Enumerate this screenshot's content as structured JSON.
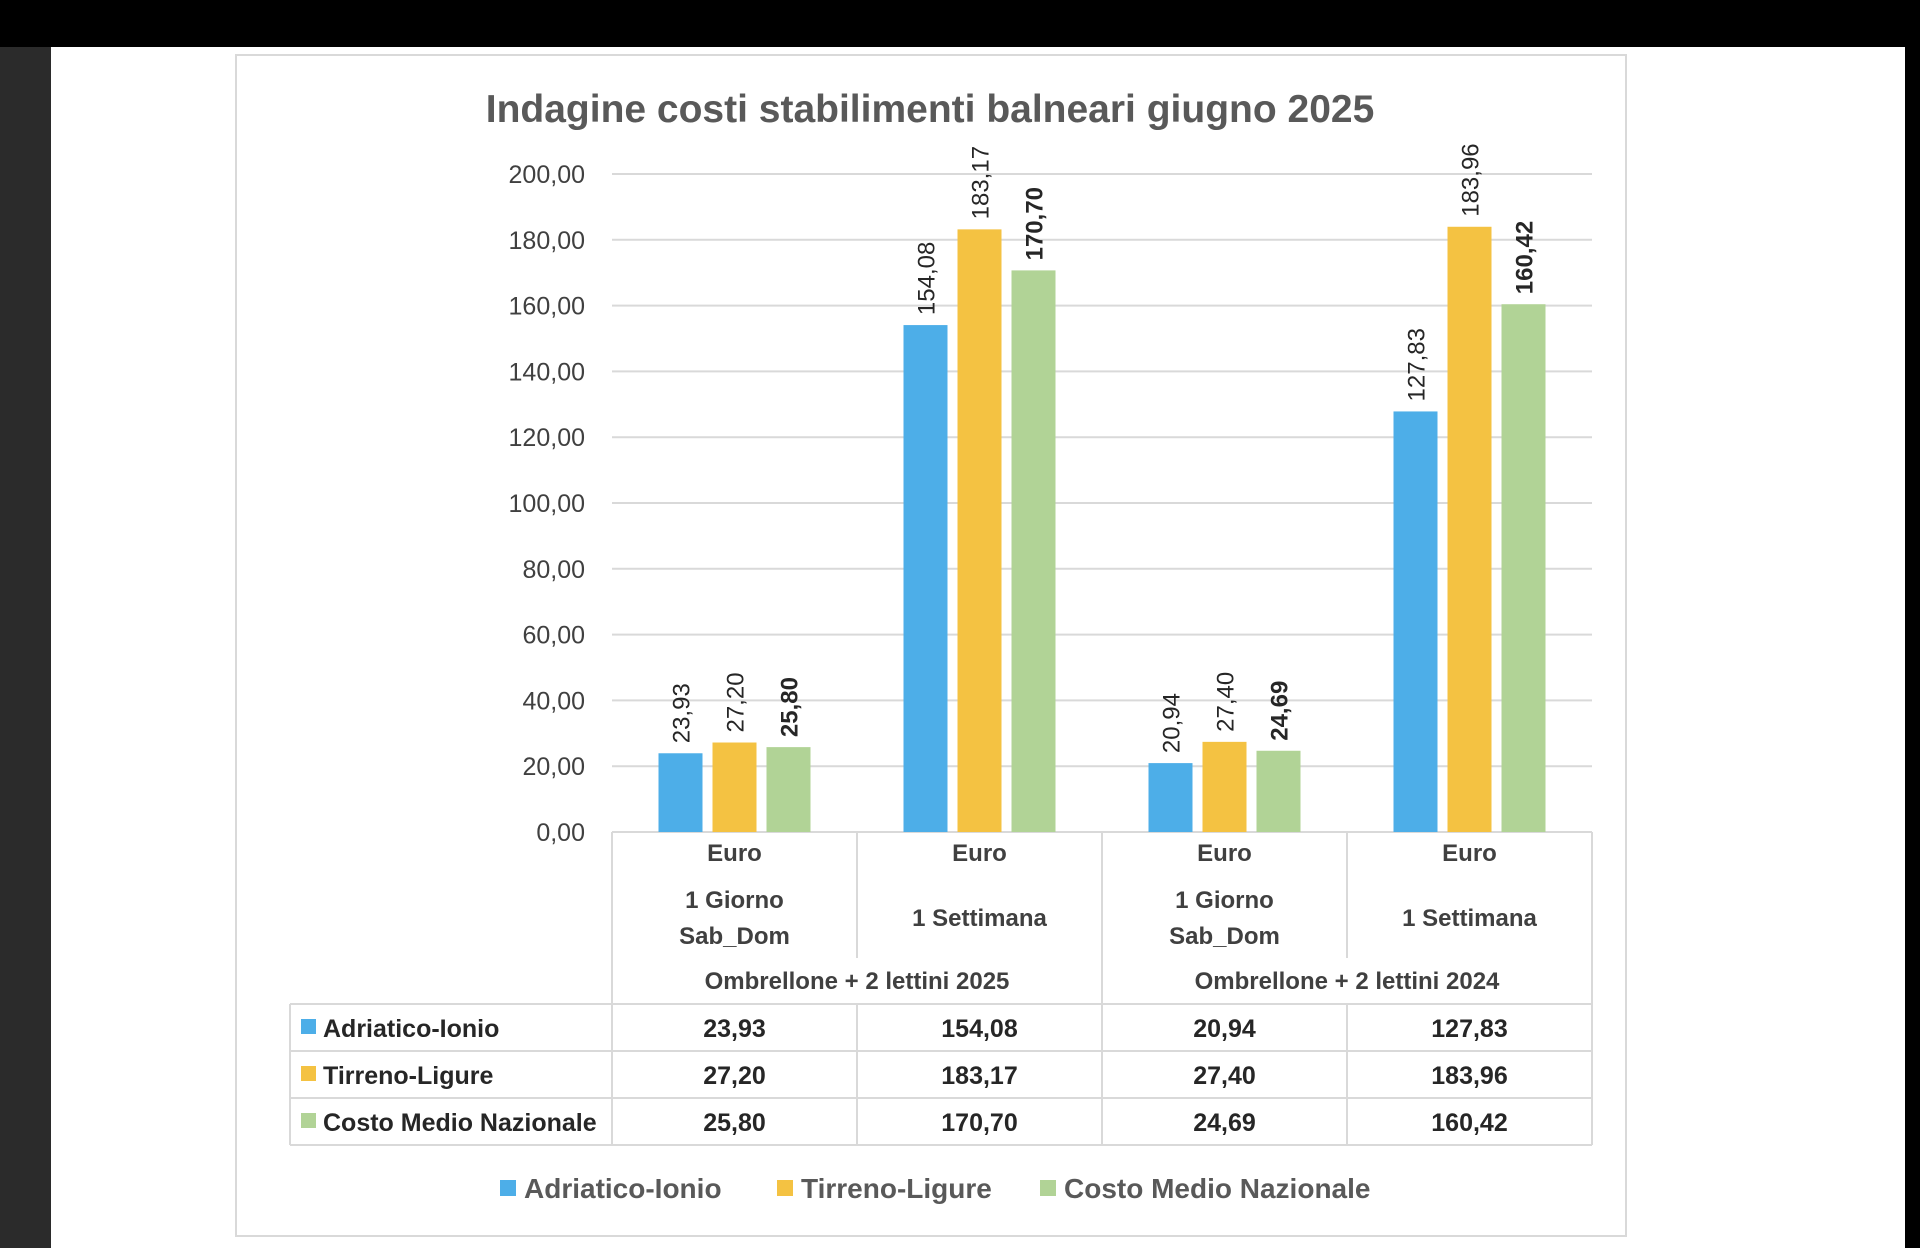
{
  "chart_data": {
    "type": "bar",
    "title": "Indagine costi stabilimenti balneari giugno 2025",
    "ylim": [
      0,
      200
    ],
    "yticks": [
      "0,00",
      "20,00",
      "40,00",
      "60,00",
      "80,00",
      "100,00",
      "120,00",
      "140,00",
      "160,00",
      "180,00",
      "200,00"
    ],
    "grid": true,
    "legend_position": "bottom",
    "categories": [
      {
        "unit": "Euro",
        "lines": [
          "1 Giorno",
          "Sab_Dom"
        ]
      },
      {
        "unit": "Euro",
        "lines": [
          "1 Settimana"
        ]
      },
      {
        "unit": "Euro",
        "lines": [
          "1 Giorno",
          "Sab_Dom"
        ]
      },
      {
        "unit": "Euro",
        "lines": [
          "1 Settimana"
        ]
      }
    ],
    "groups": [
      "Ombrellone + 2 lettini 2025",
      "Ombrellone + 2 lettini 2024"
    ],
    "series": [
      {
        "name": "Adriatico-Ionio",
        "color": "#4daee8",
        "values": [
          23.93,
          154.08,
          20.94,
          127.83
        ],
        "labels": [
          "23,93",
          "154,08",
          "20,94",
          "127,83"
        ]
      },
      {
        "name": "Tirreno-Ligure",
        "color": "#f4c242",
        "values": [
          27.2,
          183.17,
          27.4,
          183.96
        ],
        "labels": [
          "27,20",
          "183,17",
          "27,40",
          "183,96"
        ]
      },
      {
        "name": "Costo Medio Nazionale",
        "color": "#b1d396",
        "values": [
          25.8,
          170.7,
          24.69,
          160.42
        ],
        "labels": [
          "25,80",
          "170,70",
          "24,69",
          "160,42"
        ]
      }
    ]
  }
}
